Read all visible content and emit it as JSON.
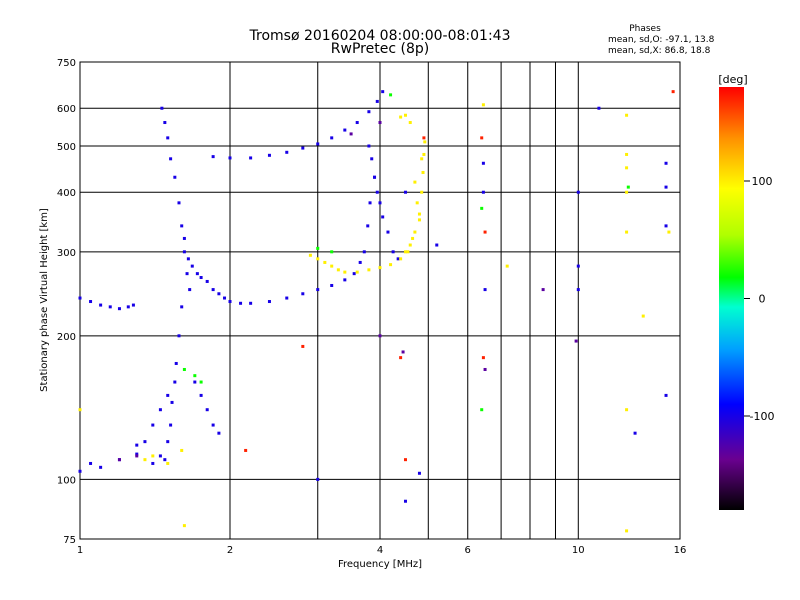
{
  "header": {
    "title_line1": "Tromsø 20160204 08:00:00-08:01:43",
    "title_line2": "RwPretec (8p)"
  },
  "stats": {
    "heading": "Phases",
    "line_o": "mean, sd,O: -97.1, 13.8",
    "line_x": "mean, sd,X:  86.8, 18.8"
  },
  "colorbar": {
    "label": "[deg]",
    "ticks": [
      "100",
      "0",
      "-100"
    ],
    "range": [
      -180,
      180
    ],
    "tick_values": [
      100,
      0,
      -100
    ]
  },
  "chart_data": {
    "type": "scatter",
    "title": "Tromsø 20160204 08:00:00-08:01:43",
    "subtitle": "RwPretec (8p)",
    "xlabel": "Frequency [MHz]",
    "ylabel": "Stationary phase Virtual Height [km]",
    "xscale": "log",
    "yscale": "log",
    "xlim": [
      1,
      16
    ],
    "ylim": [
      75,
      750
    ],
    "xticks": [
      1,
      2,
      4,
      6,
      10,
      16
    ],
    "xtick_labels": [
      "1",
      "2",
      "4",
      "6",
      "10",
      "16"
    ],
    "yticks": [
      75,
      100,
      200,
      300,
      400,
      500,
      600,
      750
    ],
    "ytick_labels": [
      "75",
      "100",
      "200",
      "300",
      "400",
      "500",
      "600",
      "750"
    ],
    "x_gridlines": [
      1,
      2,
      3,
      4,
      5,
      6,
      7,
      8,
      9,
      10,
      16
    ],
    "y_gridlines": [
      100,
      200,
      300,
      400,
      500,
      600,
      750
    ],
    "grid": true,
    "color_scale": "phase in degrees, -180 (black) to 180 (red)",
    "series": [
      {
        "phase": -100,
        "points": [
          [
            1.0,
            240
          ],
          [
            1.05,
            236
          ],
          [
            1.1,
            232
          ],
          [
            1.15,
            230
          ],
          [
            1.2,
            228
          ],
          [
            1.25,
            230
          ],
          [
            1.28,
            232
          ],
          [
            1.0,
            104
          ],
          [
            1.05,
            108
          ],
          [
            1.1,
            106
          ],
          [
            1.2,
            110
          ],
          [
            1.3,
            113
          ],
          [
            1.4,
            108
          ],
          [
            1.45,
            112
          ],
          [
            1.46,
            600
          ],
          [
            1.48,
            560
          ],
          [
            1.5,
            520
          ],
          [
            1.52,
            470
          ],
          [
            1.55,
            430
          ],
          [
            1.58,
            380
          ],
          [
            1.6,
            340
          ],
          [
            1.62,
            300
          ],
          [
            1.64,
            270
          ],
          [
            1.66,
            250
          ],
          [
            1.6,
            230
          ],
          [
            1.58,
            200
          ],
          [
            1.56,
            175
          ],
          [
            1.55,
            160
          ],
          [
            1.53,
            145
          ],
          [
            1.52,
            130
          ],
          [
            1.5,
            120
          ],
          [
            1.48,
            110
          ],
          [
            1.62,
            320
          ],
          [
            1.65,
            290
          ],
          [
            1.68,
            280
          ],
          [
            1.72,
            270
          ],
          [
            1.75,
            265
          ],
          [
            1.8,
            260
          ],
          [
            1.85,
            250
          ],
          [
            1.9,
            245
          ],
          [
            1.95,
            240
          ],
          [
            2.0,
            236
          ],
          [
            2.1,
            234
          ],
          [
            2.2,
            234
          ],
          [
            2.4,
            236
          ],
          [
            2.6,
            240
          ],
          [
            2.8,
            245
          ],
          [
            3.0,
            250
          ],
          [
            3.2,
            255
          ],
          [
            3.4,
            262
          ],
          [
            3.55,
            270
          ],
          [
            3.65,
            285
          ],
          [
            3.72,
            300
          ],
          [
            3.78,
            340
          ],
          [
            3.82,
            380
          ],
          [
            3.9,
            430
          ],
          [
            1.85,
            475
          ],
          [
            2.0,
            472
          ],
          [
            2.2,
            472
          ],
          [
            2.4,
            478
          ],
          [
            2.6,
            485
          ],
          [
            2.8,
            495
          ],
          [
            3.0,
            505
          ],
          [
            3.2,
            520
          ],
          [
            3.4,
            540
          ],
          [
            3.6,
            560
          ],
          [
            3.8,
            590
          ],
          [
            3.95,
            620
          ],
          [
            4.05,
            650
          ],
          [
            3.8,
            500
          ],
          [
            3.85,
            470
          ],
          [
            3.9,
            430
          ],
          [
            3.95,
            400
          ],
          [
            4.0,
            380
          ],
          [
            4.05,
            355
          ],
          [
            4.15,
            330
          ],
          [
            4.25,
            300
          ],
          [
            4.35,
            290
          ],
          [
            1.7,
            160
          ],
          [
            1.75,
            150
          ],
          [
            1.8,
            140
          ],
          [
            1.85,
            130
          ],
          [
            1.9,
            125
          ],
          [
            1.4,
            130
          ],
          [
            1.45,
            140
          ],
          [
            1.5,
            150
          ],
          [
            1.35,
            120
          ],
          [
            1.3,
            118
          ],
          [
            6.45,
            460
          ],
          [
            6.45,
            400
          ],
          [
            10.0,
            400
          ],
          [
            10.0,
            280
          ],
          [
            10.0,
            250
          ],
          [
            11.0,
            600
          ],
          [
            13.0,
            125
          ],
          [
            15.0,
            460
          ],
          [
            15.0,
            410
          ],
          [
            15.0,
            340
          ],
          [
            15.0,
            150
          ],
          [
            3.0,
            100
          ],
          [
            4.5,
            90
          ],
          [
            6.5,
            250
          ],
          [
            4.8,
            103
          ],
          [
            5.2,
            310
          ],
          [
            4.5,
            400
          ]
        ]
      },
      {
        "phase": 100,
        "points": [
          [
            2.9,
            295
          ],
          [
            3.0,
            290
          ],
          [
            3.1,
            285
          ],
          [
            3.2,
            280
          ],
          [
            3.3,
            275
          ],
          [
            3.4,
            272
          ],
          [
            3.6,
            272
          ],
          [
            3.8,
            275
          ],
          [
            4.0,
            278
          ],
          [
            4.2,
            282
          ],
          [
            4.4,
            290
          ],
          [
            4.55,
            300
          ],
          [
            4.7,
            330
          ],
          [
            4.8,
            360
          ],
          [
            4.85,
            400
          ],
          [
            4.88,
            440
          ],
          [
            4.9,
            480
          ],
          [
            4.92,
            510
          ],
          [
            4.6,
            560
          ],
          [
            4.5,
            580
          ],
          [
            4.4,
            575
          ],
          [
            4.7,
            420
          ],
          [
            4.75,
            380
          ],
          [
            4.8,
            350
          ],
          [
            4.6,
            310
          ],
          [
            4.5,
            300
          ],
          [
            4.65,
            320
          ],
          [
            4.85,
            470
          ],
          [
            1.4,
            112
          ],
          [
            1.5,
            108
          ],
          [
            1.6,
            115
          ],
          [
            1.35,
            110
          ],
          [
            12.5,
            580
          ],
          [
            12.5,
            480
          ],
          [
            12.5,
            450
          ],
          [
            12.5,
            400
          ],
          [
            12.5,
            330
          ],
          [
            12.5,
            140
          ],
          [
            12.5,
            78
          ],
          [
            1.0,
            140
          ],
          [
            1.62,
            80
          ],
          [
            6.45,
            610
          ],
          [
            15.2,
            330
          ],
          [
            7.2,
            280
          ],
          [
            13.5,
            220
          ]
        ]
      },
      {
        "phase": 20,
        "points": [
          [
            1.62,
            170
          ],
          [
            1.7,
            165
          ],
          [
            1.75,
            160
          ],
          [
            3.0,
            305
          ],
          [
            3.2,
            300
          ],
          [
            6.4,
            140
          ],
          [
            6.4,
            370
          ],
          [
            4.2,
            640
          ],
          [
            12.6,
            410
          ]
        ]
      },
      {
        "phase": 170,
        "points": [
          [
            2.15,
            115
          ],
          [
            2.8,
            190
          ],
          [
            4.4,
            180
          ],
          [
            4.5,
            110
          ],
          [
            6.45,
            180
          ],
          [
            6.5,
            330
          ],
          [
            15.5,
            650
          ],
          [
            4.9,
            520
          ],
          [
            6.4,
            520
          ]
        ]
      },
      {
        "phase": -130,
        "points": [
          [
            1.3,
            112
          ],
          [
            1.2,
            110
          ],
          [
            4.0,
            200
          ],
          [
            4.45,
            185
          ],
          [
            8.5,
            250
          ],
          [
            9.9,
            195
          ],
          [
            6.5,
            170
          ],
          [
            4.0,
            560
          ],
          [
            3.5,
            530
          ]
        ]
      }
    ]
  }
}
